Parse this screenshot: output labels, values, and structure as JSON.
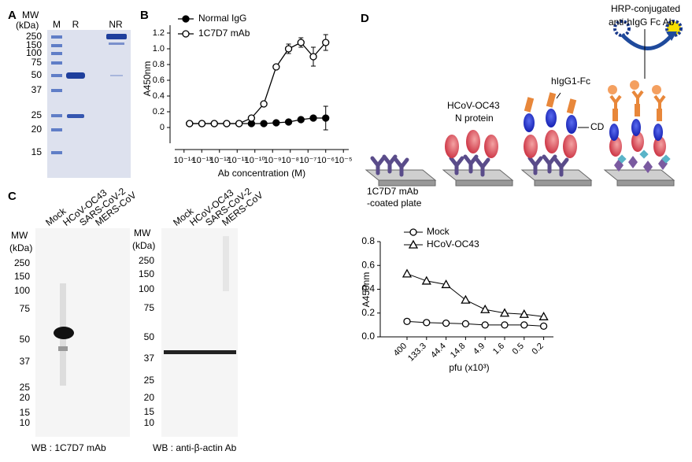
{
  "panel_labels": [
    "A",
    "B",
    "C",
    "D"
  ],
  "gel_a": {
    "mw_label": "MW",
    "unit_label": "(kDa)",
    "lanes": [
      "M",
      "R",
      "NR"
    ],
    "markers": [
      250,
      150,
      100,
      75,
      50,
      37,
      25,
      20,
      15
    ]
  },
  "blot_c": [
    {
      "mw_label": "MW",
      "unit_label": "(kDa)",
      "lanes": [
        "Mock",
        "HCoV-OC43",
        "SARS-CoV-2",
        "MERS-CoV"
      ],
      "markers": [
        250,
        150,
        100,
        75,
        50,
        37,
        25,
        20,
        15,
        10
      ],
      "caption": "WB : 1C7D7  mAb"
    },
    {
      "mw_label": "MW",
      "unit_label": "(kDa)",
      "lanes": [
        "Mock",
        "HCoV-OC43",
        "SARS-CoV-2",
        "MERS-CoV"
      ],
      "markers": [
        250,
        150,
        100,
        75,
        50,
        37,
        25,
        20,
        15,
        10
      ],
      "caption": "WB : anti-β-actin Ab"
    }
  ],
  "diagram_d": {
    "plate_label": [
      "1C7D7  mAb",
      "-coated plate"
    ],
    "antigen_label": [
      "HCoV-OC43",
      "N protein"
    ],
    "fc_label": "hIgG1-Fc",
    "cd_label": "CD",
    "detection_label": [
      "HRP-conjugated",
      "anti-hIgG  Fc Ab"
    ]
  },
  "chart_data": [
    {
      "type": "scatter",
      "x_label": "Ab concentration (M)",
      "y_label": "A450nm",
      "log_x": true,
      "x": [
        2.048e-14,
        1.024e-13,
        5.12e-13,
        2.56e-12,
        1.28e-11,
        6.4e-11,
        3.2e-10,
        1.6e-09,
        8e-09,
        4e-08,
        2e-07,
        1e-06
      ],
      "xlim": [
        3e-15,
        2e-05
      ],
      "xticks": [
        {
          "value": 1e-14,
          "label": "10⁻¹⁴"
        },
        {
          "value": 1e-13,
          "label": "10⁻¹³"
        },
        {
          "value": 1e-12,
          "label": "10⁻¹²"
        },
        {
          "value": 1e-11,
          "label": "10⁻¹¹"
        },
        {
          "value": 1e-10,
          "label": "10⁻¹⁰"
        },
        {
          "value": 1e-09,
          "label": "10⁻⁹"
        },
        {
          "value": 1e-08,
          "label": "10⁻⁸"
        },
        {
          "value": 1e-07,
          "label": "10⁻⁷"
        },
        {
          "value": 1e-06,
          "label": "10⁻⁶"
        },
        {
          "value": 1e-05,
          "label": "10⁻⁵"
        }
      ],
      "ylim": [
        -0.2,
        1.3
      ],
      "yticks": [
        0,
        0.2,
        0.4,
        0.6,
        0.8,
        {
          "value": 1,
          "label": "1.0"
        },
        1.2
      ],
      "series": [
        {
          "name": "Normal IgG",
          "marker": "filled",
          "color": "#000000",
          "values": [
            0.05,
            0.05,
            0.05,
            0.05,
            0.05,
            0.05,
            0.05,
            0.06,
            0.07,
            0.1,
            0.12,
            0.12
          ],
          "errors": [
            null,
            null,
            null,
            null,
            null,
            null,
            null,
            null,
            null,
            null,
            0.03,
            0.15
          ]
        },
        {
          "name": "1C7D7  mAb",
          "marker": "open",
          "color": "#000000",
          "values": [
            0.05,
            0.05,
            0.05,
            0.05,
            0.05,
            0.12,
            0.3,
            0.77,
            1.0,
            1.08,
            0.9,
            1.08
          ],
          "errors": [
            null,
            null,
            null,
            null,
            null,
            null,
            0.02,
            0.03,
            0.06,
            0.06,
            0.12,
            0.1
          ]
        }
      ]
    },
    {
      "type": "line",
      "x_label": "pfu (x10³)",
      "y_label": "A450nm",
      "categories": [
        "400",
        "133.3",
        "44.4",
        "14.8",
        "4.9",
        "1.6",
        "0.5",
        "0.2"
      ],
      "ylim": [
        0,
        0.8
      ],
      "yticks": [
        {
          "value": 0,
          "label": "0.0"
        },
        0.2,
        0.4,
        0.6,
        0.8
      ],
      "series": [
        {
          "name": "Mock",
          "marker": "circle",
          "color": "#000000",
          "values": [
            0.13,
            0.12,
            0.115,
            0.11,
            0.1,
            0.1,
            0.1,
            0.09
          ]
        },
        {
          "name": "HCoV-OC43",
          "marker": "triangle",
          "color": "#000000",
          "values": [
            0.53,
            0.47,
            0.44,
            0.31,
            0.23,
            0.2,
            0.19,
            0.17
          ]
        }
      ]
    }
  ]
}
